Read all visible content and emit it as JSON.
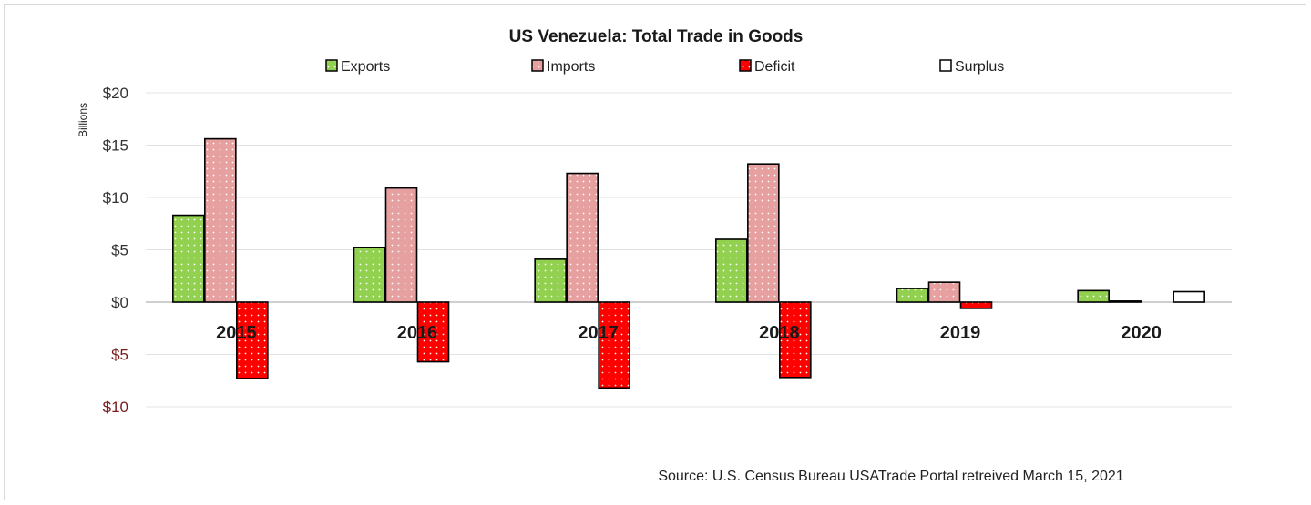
{
  "chart_data": {
    "type": "bar",
    "title": "US Venezuela: Total Trade in Goods",
    "ylabel": "Billions",
    "xlabel": "",
    "categories": [
      "2015",
      "2016",
      "2017",
      "2018",
      "2019",
      "2020"
    ],
    "series": [
      {
        "name": "Exports",
        "values": [
          8.3,
          5.2,
          4.1,
          6.0,
          1.3,
          1.1
        ],
        "color": "#92d050",
        "pattern": "dots"
      },
      {
        "name": "Imports",
        "values": [
          15.6,
          10.9,
          12.3,
          13.2,
          1.9,
          0.1
        ],
        "color": "#e6a0a0",
        "pattern": "dots"
      },
      {
        "name": "Deficit",
        "values": [
          -7.3,
          -5.7,
          -8.2,
          -7.2,
          -0.6,
          null
        ],
        "color": "#ff0000",
        "pattern": "dots"
      },
      {
        "name": "Surplus",
        "values": [
          null,
          null,
          null,
          null,
          null,
          1.0
        ],
        "color": "#ffffff",
        "pattern": "none"
      }
    ],
    "ylim": [
      -10,
      20
    ],
    "yticks": [
      20,
      15,
      10,
      5,
      0,
      -5,
      -10
    ],
    "ytick_labels": [
      "$20",
      "$15",
      "$10",
      "$5",
      "$0",
      "$5",
      "$10"
    ],
    "grid": true,
    "legend_position": "top",
    "source": "Source: U.S. Census Bureau USATrade Portal retreived March 15, 2021"
  }
}
